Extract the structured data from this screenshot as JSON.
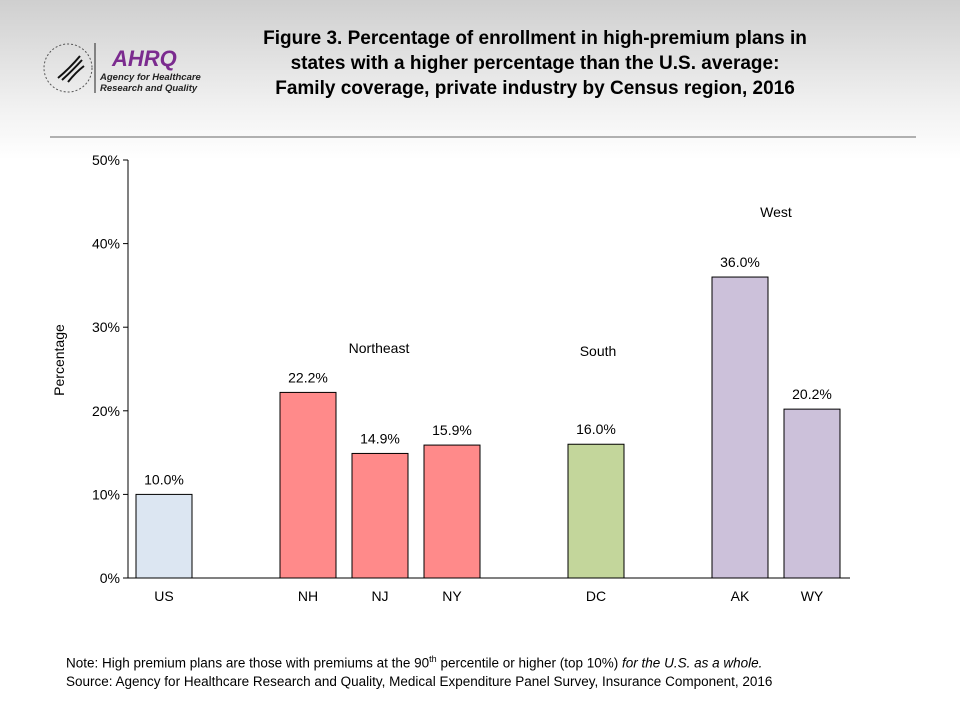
{
  "logo": {
    "name": "AHRQ",
    "tagline_1": "Agency for Healthcare",
    "tagline_2": "Research and Quality"
  },
  "chart_data": {
    "type": "bar",
    "title_lines": [
      "Figure 3. Percentage of enrollment in high-premium plans in",
      "states with a higher percentage than the U.S. average:",
      "Family coverage, private industry by Census region, 2016"
    ],
    "categories": [
      "US",
      "NH",
      "NJ",
      "NY",
      "DC",
      "AK",
      "WY"
    ],
    "values": [
      10.0,
      22.2,
      14.9,
      15.9,
      16.0,
      36.0,
      20.2
    ],
    "data_labels": [
      "10.0%",
      "22.2%",
      "14.9%",
      "15.9%",
      "16.0%",
      "36.0%",
      "20.2%"
    ],
    "bar_colors": [
      "#dce6f2",
      "#ff8a8a",
      "#ff8a8a",
      "#ff8a8a",
      "#c3d69b",
      "#ccc1da",
      "#ccc1da"
    ],
    "annotations": [
      "Northeast",
      "South",
      "West"
    ],
    "xlabel": "",
    "ylabel": "Percentage",
    "ylim": [
      0,
      50
    ],
    "yticks": [
      "0%",
      "10%",
      "20%",
      "30%",
      "40%",
      "50%"
    ],
    "grid": false
  },
  "notes": {
    "note_a": "Note: High premium plans are those with premiums at the 90",
    "note_sup": "th",
    "note_b": " percentile or higher (top 10%) ",
    "note_italic": "for the U.S. as a whole.",
    "source": "Source: Agency for Healthcare Research and Quality, Medical Expenditure Panel Survey, Insurance Component, 2016"
  }
}
